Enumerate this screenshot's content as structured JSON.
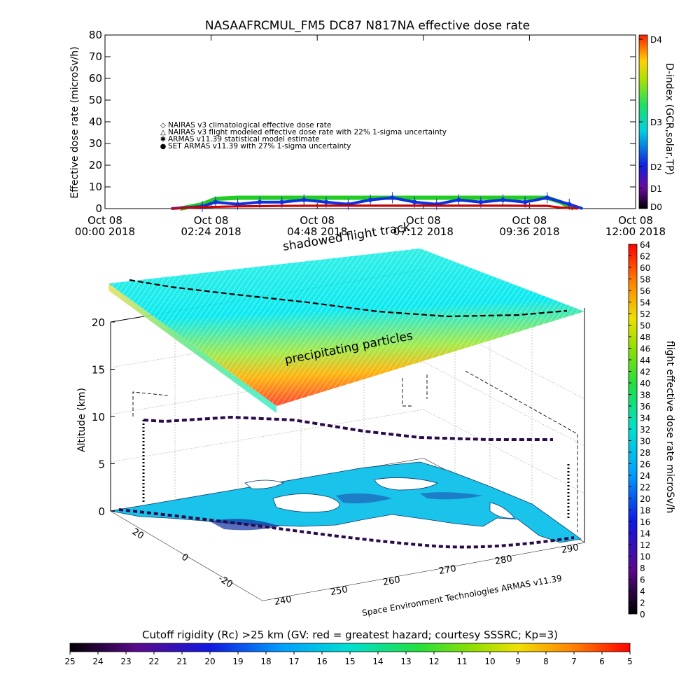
{
  "title": "NASAAFRCMUL_FM5 DC87 N817NA effective dose rate",
  "top_chart": {
    "type": "line",
    "ylabel": "Effective dose rate (microSv/h)",
    "ylim": [
      0,
      80
    ],
    "yticks": [
      "0",
      "10",
      "20",
      "30",
      "40",
      "50",
      "60",
      "70",
      "80"
    ],
    "xticks": [
      {
        "label1": "Oct 08",
        "label2": "00:00 2018"
      },
      {
        "label1": "Oct 08",
        "label2": "02:24 2018"
      },
      {
        "label1": "Oct 08",
        "label2": "04:48 2018"
      },
      {
        "label1": "Oct 08",
        "label2": "07:12 2018"
      },
      {
        "label1": "Oct 08",
        "label2": "09:36 2018"
      },
      {
        "label1": "Oct 08",
        "label2": "12:00 2018"
      }
    ],
    "legend": [
      {
        "label": "NAIRAS v3 climatological effective dose rate",
        "color": "#d40000",
        "marker": "diamond"
      },
      {
        "label": "NAIRAS v3 flight modeled effective dose rate with 22% 1-sigma uncertainty",
        "color": "#000000",
        "marker": "triangle"
      },
      {
        "label": "ARMAS v11.39 statistical model estimate",
        "color": "#22cc22",
        "marker": "star"
      },
      {
        "label": "SET ARMAS v11.39 with 27% 1-sigma uncertainty",
        "color": "#1030e0",
        "marker": "circle"
      }
    ],
    "series": [
      {
        "name": "NAIRAS v3 climatological effective dose rate",
        "x_hours": [
          1.5,
          2.0,
          2.5,
          3,
          4,
          5,
          6,
          7,
          8,
          9,
          10,
          10.3,
          10.7
        ],
        "values": [
          0,
          0.5,
          0.8,
          1.0,
          1.2,
          1.3,
          1.3,
          1.3,
          1.3,
          1.3,
          1.2,
          0.5,
          0
        ]
      },
      {
        "name": "NAIRAS v3 flight modeled effective dose rate with 22% 1-sigma uncertainty",
        "x_hours": [
          1.5,
          2.0,
          2.5,
          3,
          4,
          5,
          6,
          7,
          8,
          9,
          10,
          10.3,
          10.7
        ],
        "values": [
          0,
          0.6,
          1.0,
          1.3,
          1.5,
          1.6,
          1.6,
          1.6,
          1.6,
          1.6,
          1.5,
          0.6,
          0
        ]
      },
      {
        "name": "ARMAS v11.39 statistical model estimate",
        "x_hours": [
          1.7,
          2.2,
          2.5,
          3,
          4,
          5,
          6,
          7,
          8,
          9,
          10,
          10.3,
          10.6
        ],
        "values": [
          0,
          2,
          4.5,
          5,
          5,
          5,
          5,
          5,
          5,
          5,
          5,
          3,
          0
        ]
      },
      {
        "name": "SET ARMAS v11.39 with 27% 1-sigma uncertainty",
        "x_hours": [
          1.5,
          2.2,
          2.5,
          3,
          3.5,
          4,
          4.5,
          5,
          5.5,
          6,
          6.5,
          7,
          7.5,
          8,
          8.5,
          9,
          9.5,
          10,
          10.5,
          10.8
        ],
        "values": [
          0,
          1,
          3,
          2,
          3,
          3,
          4,
          3,
          2,
          4,
          5,
          3,
          2,
          4,
          3,
          4,
          3,
          5,
          2,
          0
        ]
      }
    ],
    "right_axis": {
      "label": "D-index (GCR,solar,TP)",
      "ticks": [
        "D0",
        "D1",
        "D2",
        "D3",
        "D4"
      ]
    }
  },
  "main_chart": {
    "zlabel": "Altitude (km)",
    "zticks": [
      "0",
      "5",
      "10",
      "15",
      "20"
    ],
    "lat_ticks": [
      "20",
      "0",
      "-20"
    ],
    "lon_ticks": [
      "240",
      "250",
      "260",
      "270",
      "280",
      "290"
    ],
    "annotations": {
      "shadowed": "shadowed flight track",
      "precipitating": "precipitating particles",
      "credit": "Space Environment Technologies ARMAS v11.39"
    }
  },
  "colorbar_right": {
    "label": "flight effective dose rate microSv/h",
    "ticks": [
      "0",
      "2",
      "4",
      "6",
      "8",
      "10",
      "12",
      "14",
      "16",
      "18",
      "20",
      "22",
      "24",
      "26",
      "28",
      "30",
      "32",
      "34",
      "36",
      "38",
      "40",
      "42",
      "44",
      "46",
      "48",
      "50",
      "52",
      "54",
      "56",
      "58",
      "60",
      "62",
      "64"
    ]
  },
  "colorbar_bottom": {
    "title": "Cutoff rigidity (Rc) >25 km (GV: red = greatest hazard; courtesy SSSRC; Kp=3)",
    "ticks": [
      "25",
      "24",
      "23",
      "22",
      "21",
      "20",
      "19",
      "18",
      "17",
      "16",
      "15",
      "14",
      "13",
      "12",
      "11",
      "10",
      "9",
      "8",
      "7",
      "6",
      "5"
    ]
  }
}
